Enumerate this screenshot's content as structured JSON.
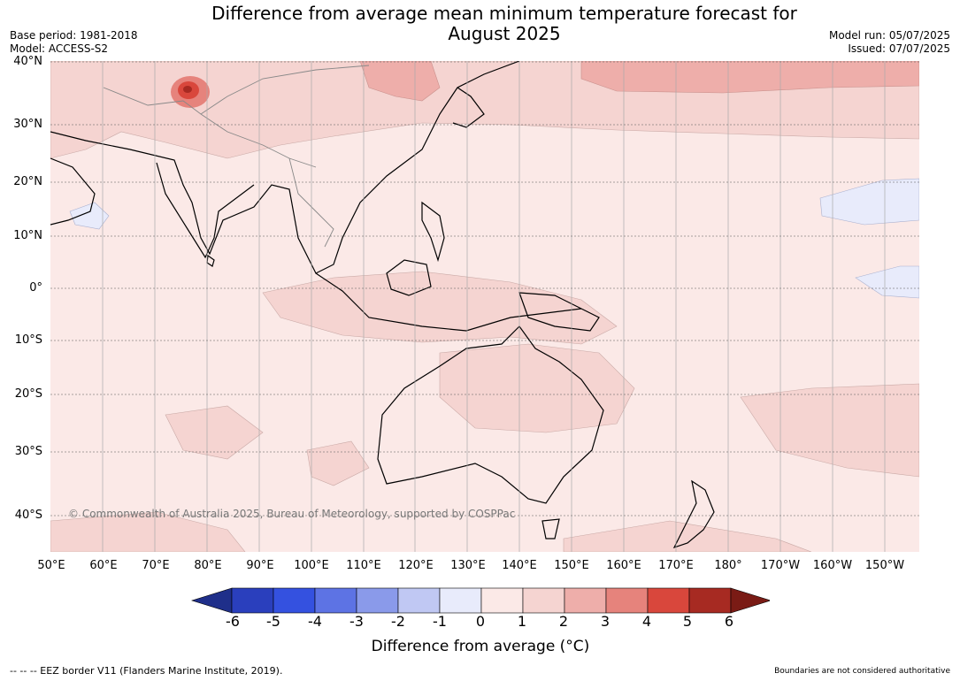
{
  "title_line1": "Difference from average mean minimum temperature forecast for",
  "title_line2": "August 2025",
  "meta_left": [
    "Base period: 1981-2018",
    "Model: ACCESS-S2"
  ],
  "meta_right": [
    "Model run: 05/07/2025",
    "Issued: 07/07/2025"
  ],
  "copyright": "© Commonwealth of Australia 2025, Bureau of Meteorology, supported by COSPPac",
  "lat_labels": [
    "40°N",
    "30°N",
    "20°N",
    "10°N",
    "0°",
    "10°S",
    "20°S",
    "30°S",
    "40°S"
  ],
  "lon_labels": [
    "50°E",
    "60°E",
    "70°E",
    "80°E",
    "90°E",
    "100°E",
    "110°E",
    "120°E",
    "130°E",
    "140°E",
    "150°E",
    "160°E",
    "170°E",
    "180°",
    "170°W",
    "160°W",
    "150°W"
  ],
  "colorbar": {
    "ticks": [
      "-6",
      "-5",
      "-4",
      "-3",
      "-2",
      "-1",
      "0",
      "1",
      "2",
      "3",
      "4",
      "5",
      "6"
    ],
    "colors": [
      "#1f2f8a",
      "#2a3fbd",
      "#3451e0",
      "#5d73e4",
      "#8a9aea",
      "#c0c8f3",
      "#e8ebfb",
      "#fbe9e7",
      "#f5d4d1",
      "#eeaeaa",
      "#e6837c",
      "#d9473c",
      "#a72a22",
      "#7a1b15"
    ],
    "label": "Difference from average (°C)"
  },
  "footer_left": "--  --  -- EEZ border V11 (Flanders Marine Institute, 2019).",
  "footer_right": "Boundaries are not considered authoritative",
  "map": {
    "ocean_color": "#fbe9e7",
    "light_anomaly_color": "#f5d4d1",
    "moderate_anomaly_color": "#eeaeaa",
    "cool_anomaly_color": "#e8ebfb",
    "hotspot_color": "#d9473c",
    "coastline_color": "#000000",
    "border_color": "#888888"
  }
}
